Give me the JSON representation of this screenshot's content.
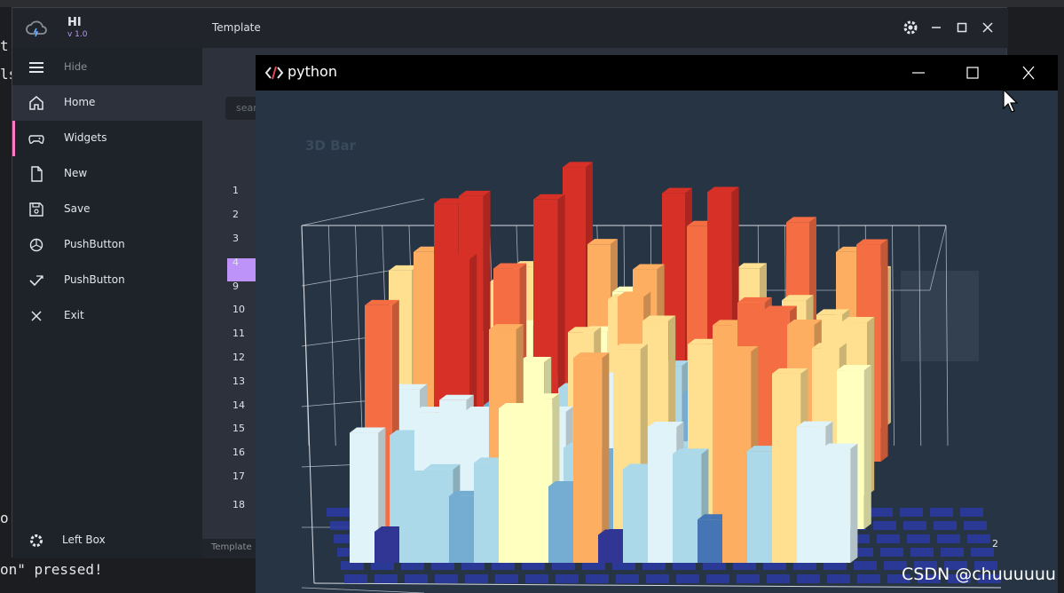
{
  "app": {
    "name": "HI",
    "version": "v 1.0",
    "title": "Template",
    "footer": "Template",
    "search_placeholder": "sear"
  },
  "sidebar": {
    "items": [
      {
        "label": "Hide",
        "icon": "hamburger-icon"
      },
      {
        "label": "Home",
        "icon": "home-icon"
      },
      {
        "label": "Widgets",
        "icon": "gamepad-icon"
      },
      {
        "label": "New",
        "icon": "file-icon"
      },
      {
        "label": "Save",
        "icon": "save-icon"
      },
      {
        "label": "PushButton",
        "icon": "pie-icon"
      },
      {
        "label": "PushButton",
        "icon": "check-icon"
      },
      {
        "label": "Exit",
        "icon": "close-icon"
      }
    ],
    "left_box": "Left Box"
  },
  "table": {
    "rows": [
      "1",
      "2",
      "3",
      "4",
      "9",
      "10",
      "11",
      "12",
      "13",
      "14",
      "15",
      "16",
      "17",
      "18"
    ],
    "selected_row": "3"
  },
  "python_window": {
    "title": "python",
    "chart_title": "3D Bar",
    "axis_tick": "2"
  },
  "terminal": {
    "line1": "t:",
    "line2": "ls",
    "line3": "o",
    "line4": "on\" pressed!"
  },
  "watermark": "CSDN @chuuuuuu",
  "colors": {
    "accent": "#bd93f9",
    "selected_marker": "#ff79c6",
    "sidebar_bg": "#1e2229",
    "chart_bg": "#263444"
  },
  "chart_data": {
    "type": "bar",
    "title": "3D Bar",
    "colormap": [
      "#313695",
      "#4575b4",
      "#74add1",
      "#abd9e9",
      "#e0f3f8",
      "#ffffbf",
      "#fee090",
      "#fdae61",
      "#f46d43",
      "#d73027"
    ],
    "tick_labels": [
      "2"
    ]
  }
}
